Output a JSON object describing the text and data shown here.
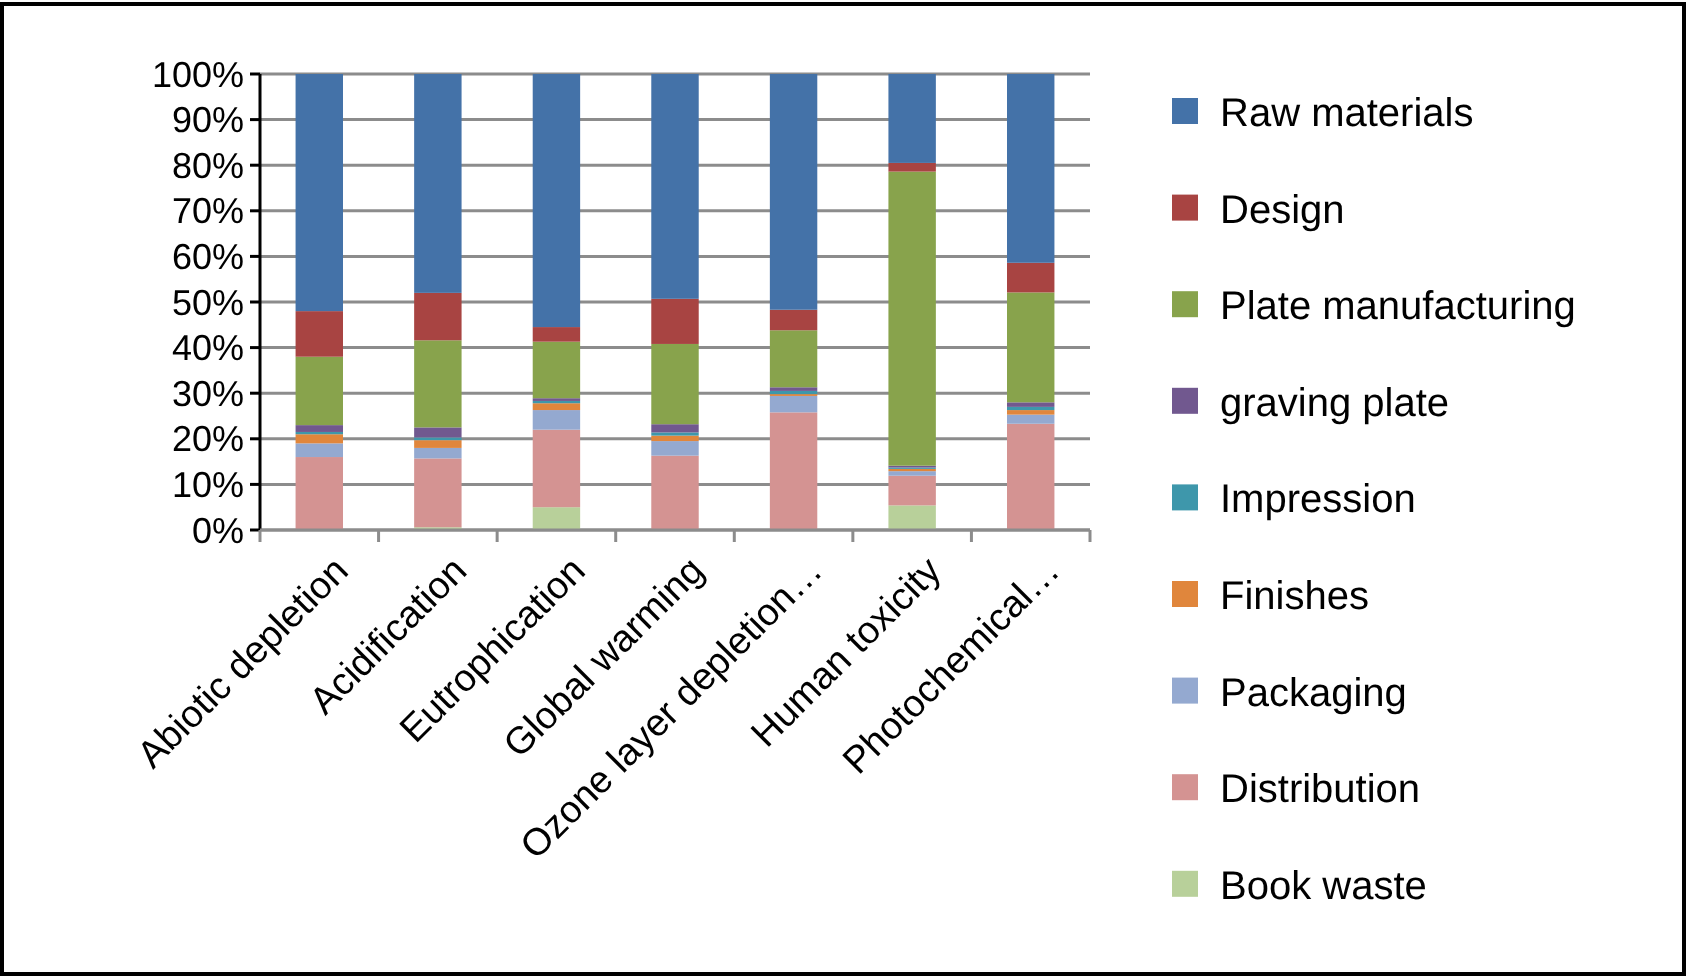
{
  "chart_data": {
    "type": "bar",
    "stacked": true,
    "categories": [
      "Abiotic depletion",
      "Acidification",
      "Eutrophication",
      "Global warming",
      "Ozone layer depletion…",
      "Human toxicity",
      "Photochemical…"
    ],
    "ylim": [
      0,
      100
    ],
    "yticks": [
      {
        "value": 0,
        "label": "0%"
      },
      {
        "value": 10,
        "label": "10%"
      },
      {
        "value": 20,
        "label": "20%"
      },
      {
        "value": 30,
        "label": "30%"
      },
      {
        "value": 40,
        "label": "40%"
      },
      {
        "value": 50,
        "label": "50%"
      },
      {
        "value": 60,
        "label": "60%"
      },
      {
        "value": 70,
        "label": "70%"
      },
      {
        "value": 80,
        "label": "80%"
      },
      {
        "value": 90,
        "label": "90%"
      },
      {
        "value": 100,
        "label": "100%"
      }
    ],
    "grid": "y",
    "legend": "right",
    "series": [
      {
        "name": "Book waste",
        "color": "#b8d09a",
        "values": [
          null,
          0.6,
          5,
          null,
          null,
          5.4,
          null
        ]
      },
      {
        "name": "Distribution",
        "color": "#d49392",
        "values": [
          16,
          15.1,
          17,
          16.3,
          25.8,
          6.5,
          23.3
        ]
      },
      {
        "name": "Packaging",
        "color": "#94a9d0",
        "values": [
          3,
          2.3,
          4.3,
          3.2,
          3.6,
          1,
          2
        ]
      },
      {
        "name": "Finishes",
        "color": "#e0863c",
        "values": [
          2,
          1.7,
          1.5,
          1.2,
          0.4,
          0.5,
          1
        ]
      },
      {
        "name": "Impression",
        "color": "#3e97ab",
        "values": [
          0.5,
          0.6,
          0.5,
          0.7,
          0.7,
          0.3,
          0.7
        ]
      },
      {
        "name": "graving plate",
        "color": "#71588f",
        "values": [
          1.5,
          2.2,
          0.6,
          1.8,
          0.8,
          0.4,
          1
        ]
      },
      {
        "name": "Plate manufacturing",
        "color": "#88a34c",
        "values": [
          15,
          19.1,
          12.4,
          17.6,
          12.5,
          64.5,
          24.1
        ]
      },
      {
        "name": "Design",
        "color": "#a84442",
        "values": [
          10,
          10.4,
          3.2,
          9.9,
          4.5,
          1.9,
          6.5
        ]
      },
      {
        "name": "Raw materials",
        "color": "#4472a8",
        "values": [
          52,
          48,
          55.5,
          49.3,
          51.7,
          19.5,
          41.4
        ]
      }
    ]
  }
}
